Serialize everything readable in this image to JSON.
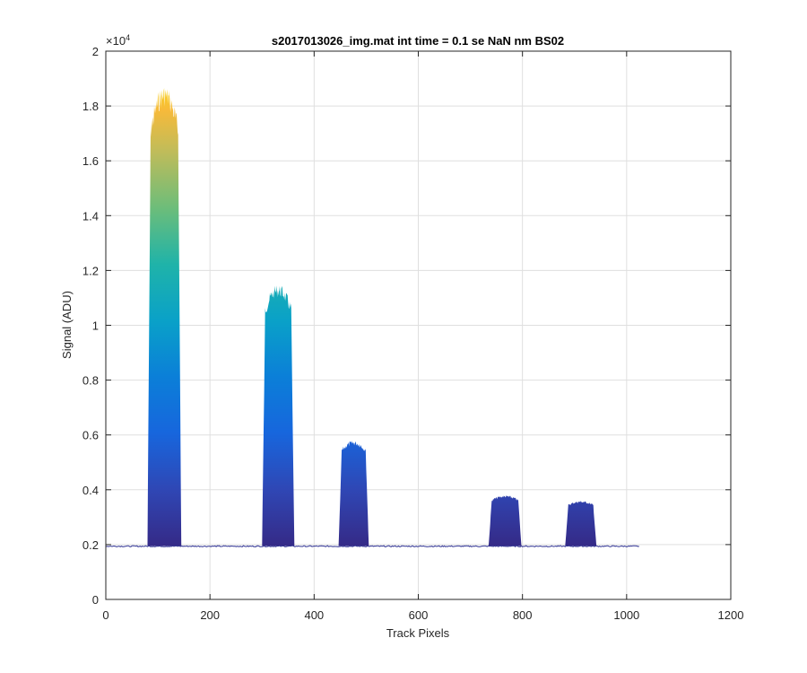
{
  "chart_data": {
    "type": "area",
    "title": "s2017013026_img.mat int time = 0.1 se  NaN nm BS02",
    "xlabel": "Track Pixels",
    "ylabel": "Signal (ADU)",
    "xlim": [
      0,
      1200
    ],
    "ylim": [
      0,
      20000
    ],
    "x_ticks": [
      0,
      200,
      400,
      600,
      800,
      1000,
      1200
    ],
    "y_ticks": [
      0,
      2000,
      4000,
      6000,
      8000,
      10000,
      12000,
      14000,
      16000,
      18000,
      20000
    ],
    "x_tick_labels": [
      "0",
      "200",
      "400",
      "600",
      "800",
      "1000",
      "1200"
    ],
    "y_tick_labels": [
      "0",
      "0.2",
      "0.4",
      "0.6",
      "0.8",
      "1",
      "1.2",
      "1.4",
      "1.6",
      "1.8",
      "2"
    ],
    "y_exponent_label": "×10",
    "y_exponent_power": "4",
    "grid": true,
    "colormap": "parula",
    "baseline": 1950,
    "x_extent": [
      0,
      1024
    ],
    "peaks": [
      {
        "x_start": 80,
        "x_end": 145,
        "peak": 18800
      },
      {
        "x_start": 300,
        "x_end": 362,
        "peak": 11500
      },
      {
        "x_start": 447,
        "x_end": 505,
        "peak": 5800
      },
      {
        "x_start": 735,
        "x_end": 798,
        "peak": 3800
      },
      {
        "x_start": 882,
        "x_end": 942,
        "peak": 3600
      }
    ]
  }
}
